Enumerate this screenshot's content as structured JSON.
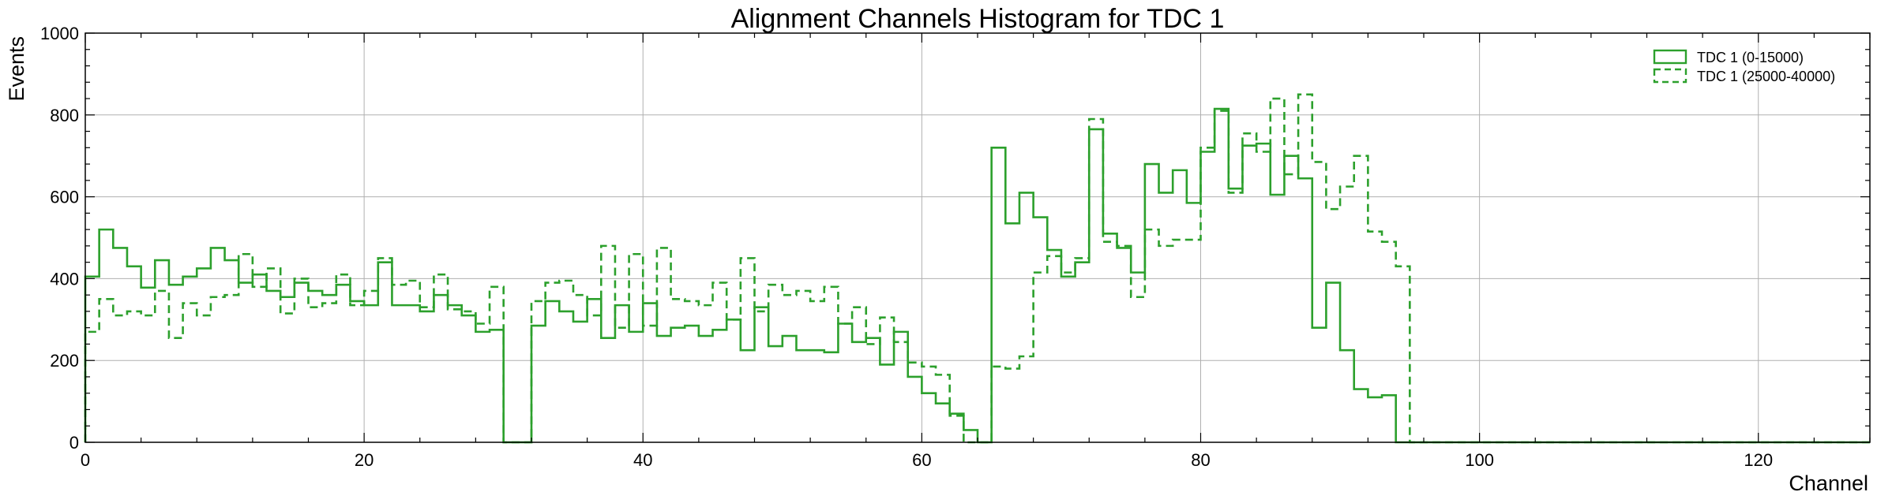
{
  "chart_data": {
    "type": "step",
    "title": "Alignment Channels Histogram for TDC 1",
    "xlabel": "Channel",
    "ylabel": "Events",
    "xlim": [
      0,
      128
    ],
    "ylim": [
      0,
      1000
    ],
    "x_ticks": [
      0,
      20,
      40,
      60,
      80,
      100,
      120
    ],
    "y_ticks": [
      0,
      200,
      400,
      600,
      800,
      1000
    ],
    "grid": true,
    "legend_position": "top-right",
    "bin_width": 1,
    "bin_start": 0,
    "color": "#2ca02c",
    "series": [
      {
        "name": "TDC 1 (0-15000)",
        "style": "solid",
        "values": [
          405,
          520,
          475,
          430,
          378,
          445,
          385,
          405,
          425,
          475,
          445,
          390,
          410,
          370,
          355,
          390,
          370,
          360,
          385,
          345,
          335,
          440,
          335,
          335,
          320,
          360,
          335,
          310,
          270,
          275,
          0,
          0,
          285,
          345,
          320,
          295,
          350,
          255,
          335,
          270,
          340,
          260,
          280,
          285,
          260,
          275,
          300,
          225,
          330,
          235,
          260,
          225,
          225,
          220,
          290,
          245,
          255,
          190,
          270,
          160,
          120,
          95,
          70,
          30,
          0,
          720,
          535,
          610,
          550,
          470,
          405,
          440,
          765,
          510,
          475,
          415,
          680,
          610,
          665,
          585,
          710,
          815,
          620,
          725,
          730,
          605,
          700,
          645,
          280,
          390,
          225,
          130,
          110,
          115,
          0,
          0,
          0,
          0,
          0,
          0,
          0,
          0,
          0,
          0,
          0,
          0,
          0,
          0,
          0,
          0,
          0,
          0,
          0,
          0,
          0,
          0,
          0,
          0,
          0,
          0,
          0,
          0,
          0,
          0,
          0,
          0,
          0,
          0
        ]
      },
      {
        "name": "TDC 1 (25000-40000)",
        "style": "dashed",
        "values": [
          270,
          350,
          310,
          320,
          310,
          370,
          255,
          340,
          310,
          355,
          360,
          460,
          380,
          425,
          315,
          400,
          330,
          340,
          410,
          335,
          370,
          450,
          385,
          395,
          330,
          410,
          325,
          320,
          290,
          380,
          0,
          0,
          345,
          390,
          395,
          360,
          310,
          480,
          280,
          460,
          285,
          475,
          350,
          345,
          335,
          390,
          300,
          450,
          320,
          385,
          360,
          370,
          345,
          380,
          290,
          330,
          240,
          305,
          245,
          195,
          185,
          165,
          65,
          0,
          0,
          185,
          180,
          210,
          415,
          455,
          415,
          450,
          790,
          490,
          480,
          355,
          520,
          480,
          495,
          495,
          720,
          810,
          610,
          755,
          710,
          840,
          655,
          850,
          685,
          570,
          625,
          700,
          515,
          490,
          430,
          0,
          0,
          0,
          0,
          0,
          0,
          0,
          0,
          0,
          0,
          0,
          0,
          0,
          0,
          0,
          0,
          0,
          0,
          0,
          0,
          0,
          0,
          0,
          0,
          0,
          0,
          0,
          0,
          0,
          0,
          0,
          0,
          0
        ]
      }
    ]
  }
}
